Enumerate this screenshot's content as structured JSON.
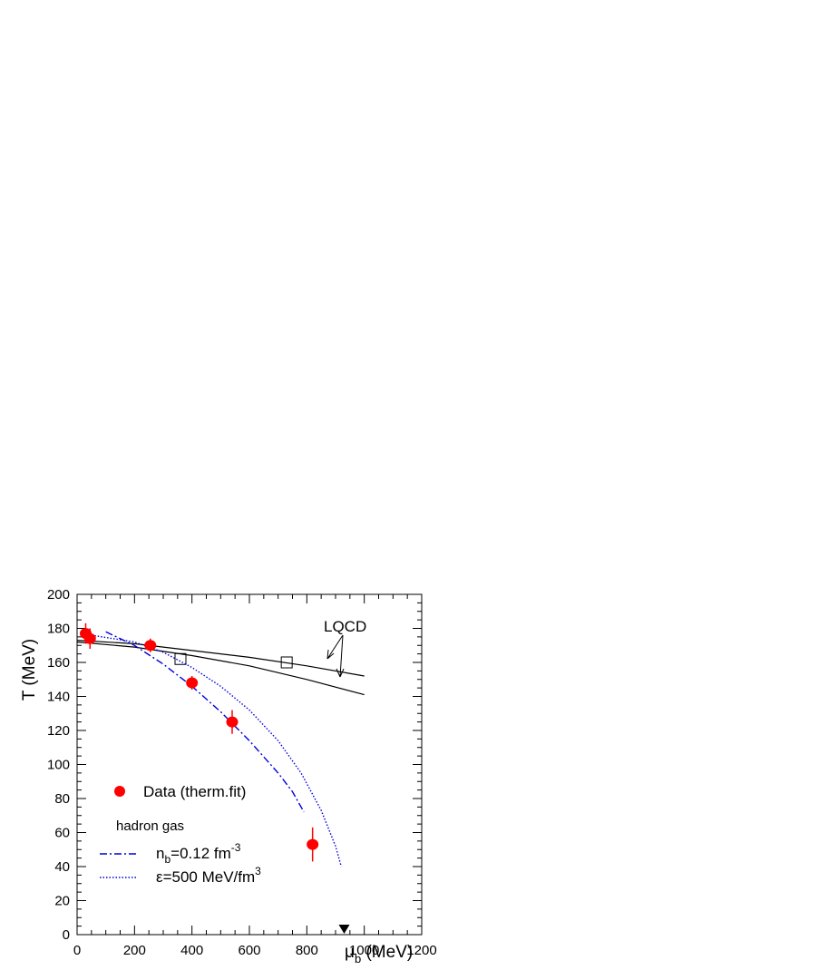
{
  "chart_data": {
    "type": "scatter",
    "xlabel": {
      "main": "μ",
      "sub": "b",
      "unit": " (MeV)"
    },
    "ylabel": "T (MeV)",
    "xlim": [
      0,
      1200
    ],
    "ylim": [
      0,
      200
    ],
    "x_ticks": [
      0,
      200,
      400,
      600,
      800,
      1000,
      1200
    ],
    "y_ticks": [
      0,
      20,
      40,
      60,
      80,
      100,
      120,
      140,
      160,
      180,
      200
    ],
    "grid": false,
    "legend_position": "bottom-left",
    "data_series": {
      "name": "Data (therm.fit)",
      "color": "#ff0000",
      "points": [
        {
          "x": 30,
          "y": 177,
          "yerr": 6
        },
        {
          "x": 45,
          "y": 174,
          "yerr": 6
        },
        {
          "x": 255,
          "y": 170,
          "yerr": 4
        },
        {
          "x": 400,
          "y": 148,
          "yerr": 4
        },
        {
          "x": 540,
          "y": 125,
          "yerr": 7
        },
        {
          "x": 820,
          "y": 53,
          "yerr": 10
        }
      ]
    },
    "lqcd": {
      "label": "LQCD",
      "lines": [
        [
          [
            0,
            173
          ],
          [
            200,
            171
          ],
          [
            400,
            167
          ],
          [
            600,
            163
          ],
          [
            800,
            158
          ],
          [
            1000,
            152
          ]
        ],
        [
          [
            0,
            172
          ],
          [
            200,
            169
          ],
          [
            400,
            164
          ],
          [
            600,
            158
          ],
          [
            800,
            150
          ],
          [
            1000,
            141
          ]
        ]
      ],
      "open_squares": [
        [
          360,
          162
        ],
        [
          730,
          160
        ]
      ]
    },
    "hadron_gas_label": "hadron gas",
    "nb_curve": {
      "label": {
        "base": "n",
        "sub": "b",
        "mid": "=0.12 fm",
        "sup": "-3"
      },
      "color": "#0000dd",
      "points": [
        [
          100,
          178
        ],
        [
          200,
          170
        ],
        [
          300,
          159
        ],
        [
          400,
          146
        ],
        [
          500,
          131
        ],
        [
          600,
          114
        ],
        [
          700,
          95
        ],
        [
          750,
          84
        ],
        [
          790,
          72
        ]
      ]
    },
    "eps_curve": {
      "label": {
        "mid": "ε=500 MeV/fm",
        "sup": "3"
      },
      "color": "#0000dd",
      "points": [
        [
          50,
          176
        ],
        [
          200,
          172
        ],
        [
          300,
          166
        ],
        [
          400,
          157
        ],
        [
          500,
          146
        ],
        [
          600,
          132
        ],
        [
          700,
          114
        ],
        [
          780,
          95
        ],
        [
          850,
          73
        ],
        [
          900,
          52
        ],
        [
          920,
          40
        ]
      ]
    },
    "marker_triangle_x": 930
  }
}
